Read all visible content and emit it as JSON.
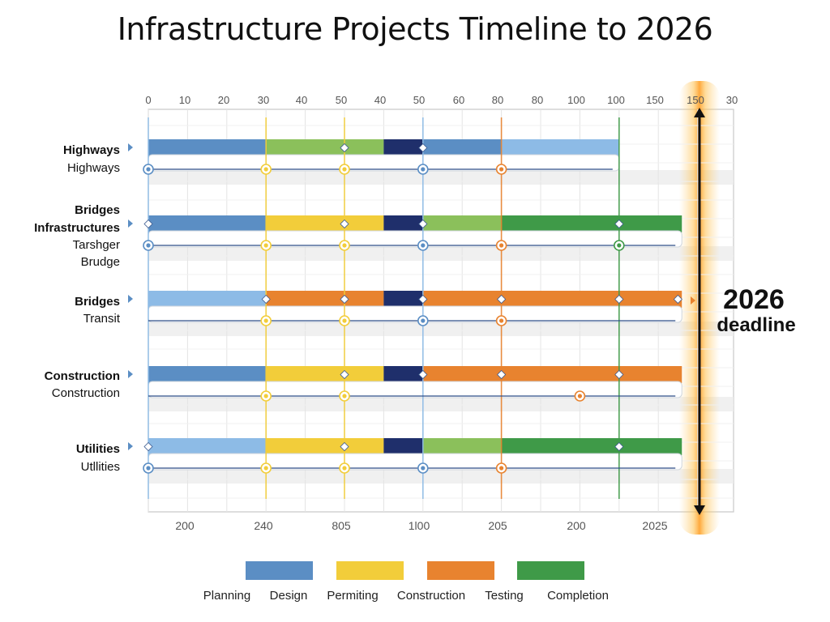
{
  "chart_data": {
    "type": "gantt",
    "title": "Infrastructure Projects Timeline to 2026",
    "top_ticks": [
      "0",
      "10",
      "20",
      "30",
      "40",
      "50",
      "40",
      "50",
      "60",
      "80",
      "80",
      "100",
      "100",
      "150",
      "150",
      "30"
    ],
    "bottom_ticks": [
      "200",
      "240",
      "805",
      "1l00",
      "205",
      "200",
      "2025"
    ],
    "phases": [
      {
        "name": "Planning",
        "color": "#5b8ec4"
      },
      {
        "name": "Design",
        "color": "#f2cd3a"
      },
      {
        "name": "Permiting",
        "color": "#e8832f"
      },
      {
        "name": "Construction",
        "color": "#3f9a48"
      },
      {
        "name": "Testing",
        "color": ""
      },
      {
        "name": "Completion",
        "color": ""
      }
    ],
    "segment_colors": {
      "blue": "#5b8ec4",
      "lightblue": "#8dbbe6",
      "green": "#8bc05b",
      "darkgreen": "#3f9a48",
      "navy": "#1f2f6b",
      "yellow": "#f2cd3a",
      "orange": "#e8832f"
    },
    "rows": [
      {
        "labels": [
          "Highways",
          "Highways"
        ],
        "segments": [
          {
            "from": 0,
            "to": 3,
            "color": "blue"
          },
          {
            "from": 3,
            "to": 6,
            "color": "green"
          },
          {
            "from": 6,
            "to": 7,
            "color": "navy"
          },
          {
            "from": 7,
            "to": 9,
            "color": "blue"
          },
          {
            "from": 9,
            "to": 12,
            "color": "lightblue"
          }
        ],
        "diamonds": [
          5,
          7
        ],
        "end": 12,
        "dots": [
          {
            "at": 0,
            "color": "blue"
          },
          {
            "at": 3,
            "color": "yellow"
          },
          {
            "at": 5,
            "color": "yellow"
          },
          {
            "at": 7,
            "color": "blue"
          },
          {
            "at": 9,
            "color": "orange"
          }
        ]
      },
      {
        "labels": [
          "Bridges",
          "Infrastructures",
          "Tarshger",
          "Brudge"
        ],
        "segments": [
          {
            "from": 0,
            "to": 3,
            "color": "blue"
          },
          {
            "from": 3,
            "to": 6,
            "color": "yellow"
          },
          {
            "from": 6,
            "to": 7,
            "color": "navy"
          },
          {
            "from": 7,
            "to": 9,
            "color": "green"
          },
          {
            "from": 9,
            "to": 13.6,
            "color": "darkgreen"
          }
        ],
        "diamonds": [
          0,
          5,
          7,
          12
        ],
        "end": 13.6,
        "dots": [
          {
            "at": 0,
            "color": "blue"
          },
          {
            "at": 3,
            "color": "yellow"
          },
          {
            "at": 5,
            "color": "yellow"
          },
          {
            "at": 7,
            "color": "blue"
          },
          {
            "at": 9,
            "color": "orange"
          },
          {
            "at": 12,
            "color": "darkgreen"
          }
        ]
      },
      {
        "labels": [
          "Bridges",
          "Transit"
        ],
        "segments": [
          {
            "from": 0,
            "to": 3,
            "color": "lightblue"
          },
          {
            "from": 3,
            "to": 6,
            "color": "orange"
          },
          {
            "from": 6,
            "to": 7,
            "color": "navy"
          },
          {
            "from": 7,
            "to": 13.6,
            "color": "orange"
          }
        ],
        "diamonds": [
          3,
          5,
          7,
          9,
          12,
          13.5
        ],
        "end": 13.6,
        "dots": [
          {
            "at": 3,
            "color": "yellow"
          },
          {
            "at": 5,
            "color": "yellow"
          },
          {
            "at": 7,
            "color": "blue"
          },
          {
            "at": 9,
            "color": "orange"
          }
        ]
      },
      {
        "labels": [
          "Construction",
          "Construction"
        ],
        "segments": [
          {
            "from": 0,
            "to": 3,
            "color": "blue"
          },
          {
            "from": 3,
            "to": 6,
            "color": "yellow"
          },
          {
            "from": 6,
            "to": 7,
            "color": "navy"
          },
          {
            "from": 7,
            "to": 13.6,
            "color": "orange"
          }
        ],
        "diamonds": [
          5,
          7,
          9,
          12
        ],
        "end": 13.6,
        "dots": [
          {
            "at": 3,
            "color": "yellow"
          },
          {
            "at": 5,
            "color": "yellow"
          },
          {
            "at": 11,
            "color": "orange"
          }
        ]
      },
      {
        "labels": [
          "Utilities",
          "Utllities"
        ],
        "segments": [
          {
            "from": 0,
            "to": 3,
            "color": "lightblue"
          },
          {
            "from": 3,
            "to": 6,
            "color": "yellow"
          },
          {
            "from": 6,
            "to": 7,
            "color": "navy"
          },
          {
            "from": 7,
            "to": 9,
            "color": "green"
          },
          {
            "from": 9,
            "to": 13.6,
            "color": "darkgreen"
          }
        ],
        "diamonds": [
          0,
          5,
          12
        ],
        "end": 13.6,
        "dots": [
          {
            "at": 0,
            "color": "blue"
          },
          {
            "at": 3,
            "color": "yellow"
          },
          {
            "at": 5,
            "color": "yellow"
          },
          {
            "at": 7,
            "color": "blue"
          },
          {
            "at": 9,
            "color": "orange"
          }
        ]
      }
    ],
    "milestone_lines": [
      {
        "at": 3,
        "color": "yellow"
      },
      {
        "at": 5,
        "color": "yellow"
      },
      {
        "at": 7,
        "color": "lightblue"
      },
      {
        "at": 9,
        "color": "orange"
      },
      {
        "at": 12,
        "color": "darkgreen"
      }
    ],
    "deadline": {
      "at": 14.3,
      "label_line1": "2026",
      "label_line2": "deadline",
      "color": "#f59a1b"
    },
    "grid": true,
    "legend_position": "bottom"
  }
}
